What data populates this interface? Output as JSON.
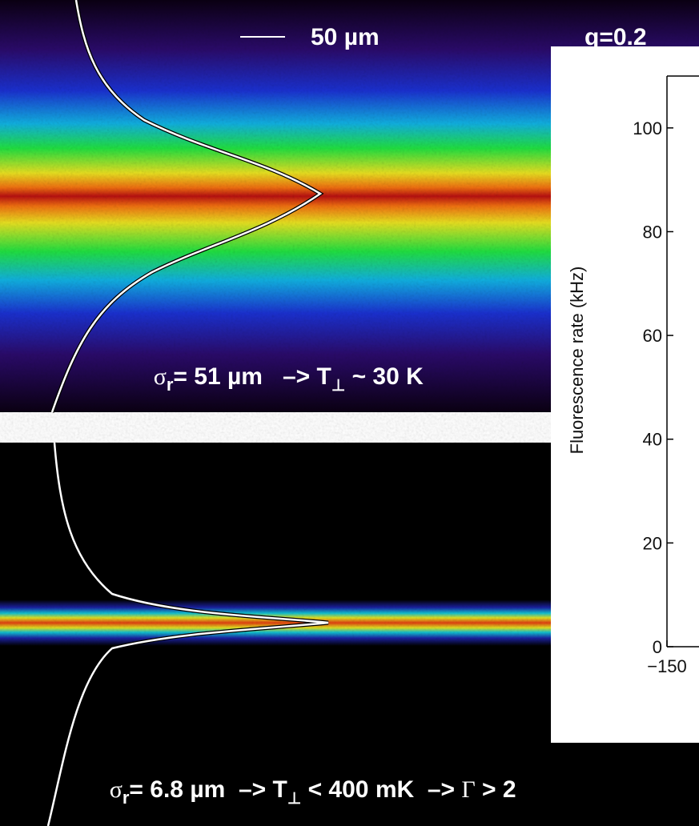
{
  "top_panel": {
    "scale_label": "50 µm",
    "corner_label": "q=0.2",
    "caption": [
      "σ",
      "r",
      "= 51 µm   –> T",
      "⊥",
      " ~ 30 K"
    ]
  },
  "bottom_panel": {
    "caption": [
      "σ",
      "r",
      "= 6.8 µm  –> T",
      "⊥",
      " < 400 mK  –> ",
      "Γ",
      " > 2"
    ]
  },
  "chart_data": {
    "type": "line",
    "y_label": "Fluorescence rate (kHz)",
    "ylim": [
      0,
      110
    ],
    "yticks": [
      0,
      20,
      40,
      60,
      80,
      100
    ],
    "xticks": [
      {
        "value": -150,
        "label": "−150"
      }
    ]
  }
}
